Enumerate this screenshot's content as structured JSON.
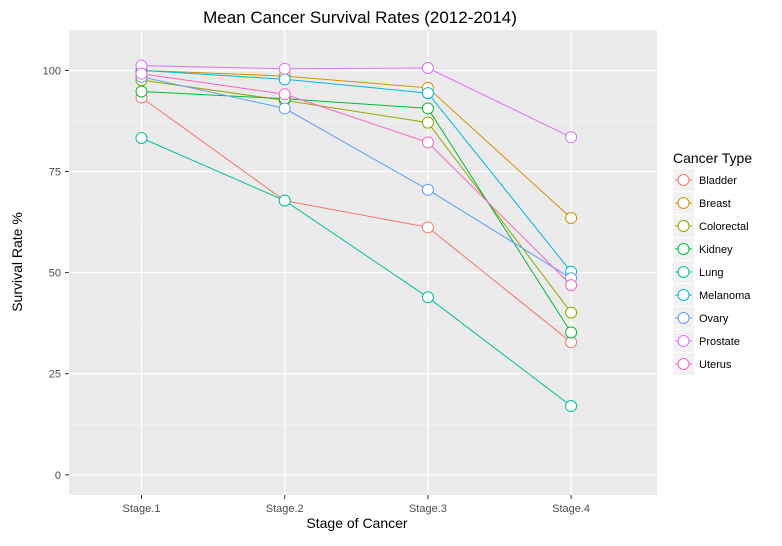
{
  "chart_data": {
    "type": "line",
    "title": "Mean Cancer Survival Rates (2012-2014)",
    "xlabel": "Stage of Cancer",
    "ylabel": "Survival Rate %",
    "categories": [
      "Stage.1",
      "Stage.2",
      "Stage.3",
      "Stage.4"
    ],
    "ylim": [
      -5,
      110
    ],
    "yticks": [
      0,
      25,
      50,
      75,
      100
    ],
    "grid": true,
    "legend": {
      "title": "Cancer Type",
      "position": "right"
    },
    "series": [
      {
        "name": "Bladder",
        "color": "#F8766D",
        "values": [
          93.3,
          67.8,
          61.2,
          32.8
        ]
      },
      {
        "name": "Breast",
        "color": "#D39200",
        "values": [
          100.0,
          98.6,
          95.7,
          63.5
        ]
      },
      {
        "name": "Colorectal",
        "color": "#93AA00",
        "values": [
          97.6,
          92.6,
          87.1,
          40.1
        ]
      },
      {
        "name": "Kidney",
        "color": "#00BA38",
        "values": [
          94.8,
          93.0,
          90.6,
          35.2
        ]
      },
      {
        "name": "Lung",
        "color": "#00C19F",
        "values": [
          83.3,
          67.8,
          43.9,
          17.0
        ]
      },
      {
        "name": "Melanoma",
        "color": "#00B9E3",
        "values": [
          100.0,
          97.8,
          94.4,
          50.2
        ]
      },
      {
        "name": "Ovary",
        "color": "#619CFF",
        "values": [
          98.4,
          90.6,
          70.5,
          48.6
        ]
      },
      {
        "name": "Prostate",
        "color": "#DB72FB",
        "values": [
          101.2,
          100.4,
          100.6,
          83.5
        ]
      },
      {
        "name": "Uterus",
        "color": "#FF61C3",
        "values": [
          99.2,
          94.1,
          82.2,
          46.9
        ]
      }
    ]
  }
}
